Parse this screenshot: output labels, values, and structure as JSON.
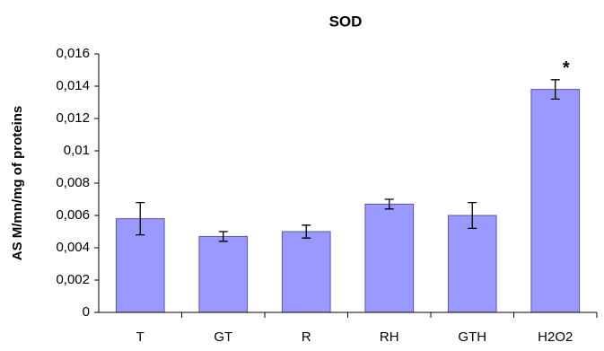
{
  "chart_data": {
    "type": "bar",
    "title": "SOD",
    "ylabel": "AS M/mn/mg of proteins",
    "categories": [
      "T",
      "GT",
      "R",
      "RH",
      "GTH",
      "H2O2"
    ],
    "values": [
      0.0058,
      0.0047,
      0.005,
      0.0067,
      0.006,
      0.0138
    ],
    "errors": [
      0.001,
      0.0003,
      0.0004,
      0.0003,
      0.0008,
      0.0006
    ],
    "color": "#9999ff",
    "ylim": [
      0,
      0.016
    ],
    "yticks": [
      0,
      {
        "value": 0.002,
        "label": "0,002"
      },
      {
        "value": 0.004,
        "label": "0,004"
      },
      {
        "value": 0.006,
        "label": "0,006"
      },
      {
        "value": 0.008,
        "label": "0,008"
      },
      {
        "value": 0.01,
        "label": "0,01"
      },
      {
        "value": 0.012,
        "label": "0,012"
      },
      {
        "value": 0.014,
        "label": "0,014"
      },
      {
        "value": 0.016,
        "label": "0,016"
      }
    ],
    "grid": false,
    "annotations": [
      {
        "text": "*",
        "x": "H2O2"
      }
    ]
  }
}
